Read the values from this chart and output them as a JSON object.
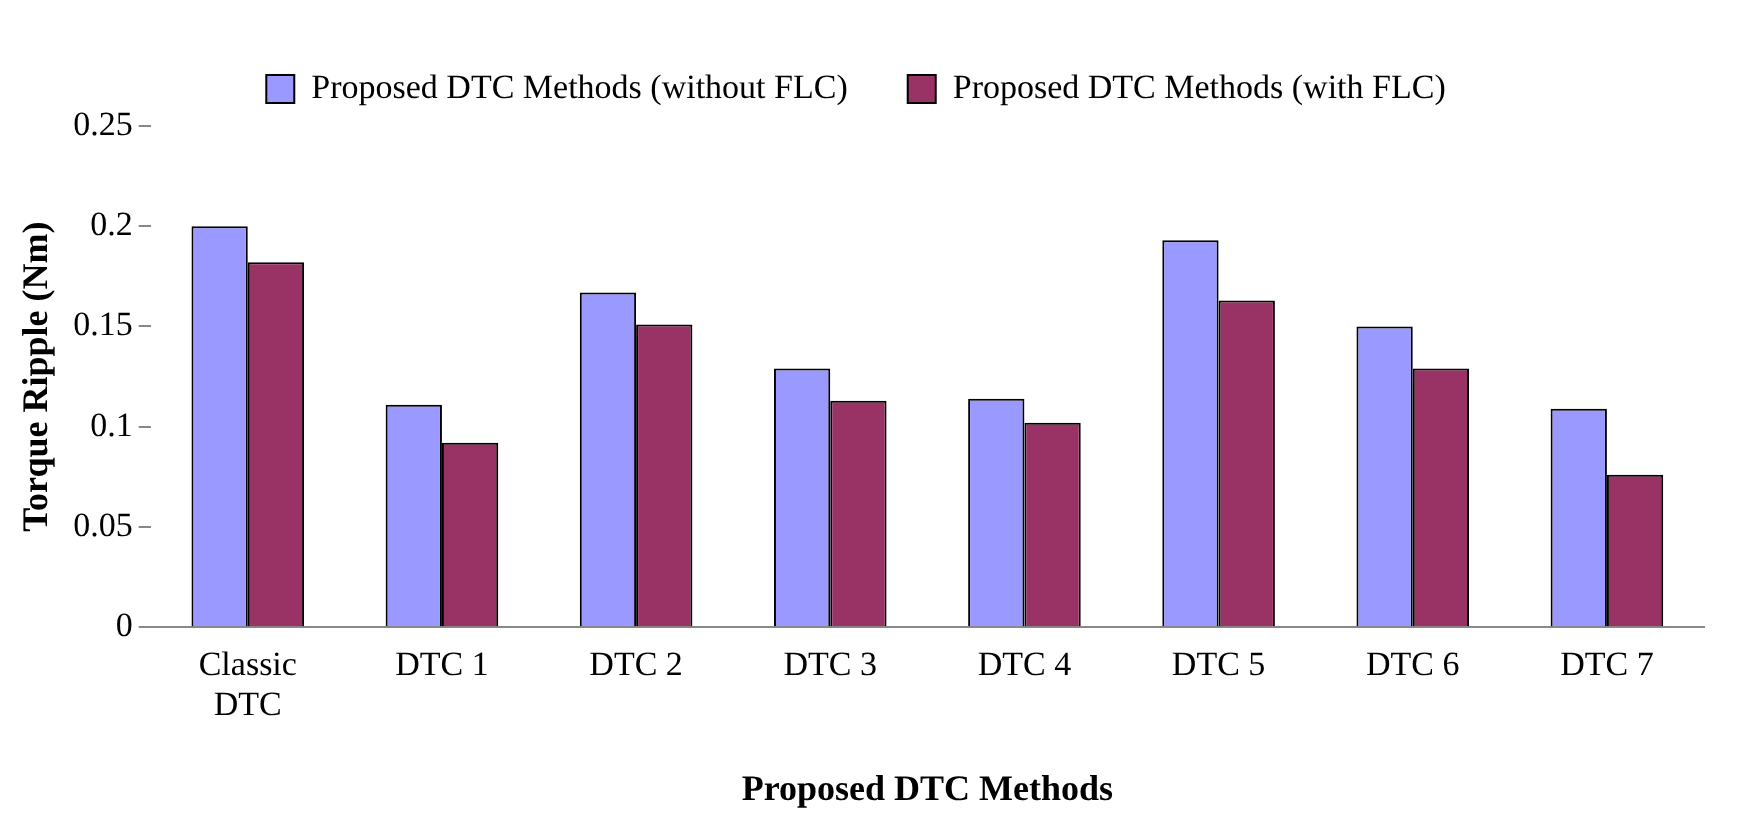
{
  "chart_data": {
    "type": "bar",
    "xlabel": "Proposed DTC Methods",
    "ylabel": "Torque Ripple (Nm)",
    "categories": [
      "Classic DTC",
      "DTC 1",
      "DTC 2",
      "DTC 3",
      "DTC 4",
      "DTC 5",
      "DTC 6",
      "DTC 7"
    ],
    "series": [
      {
        "name": "Proposed DTC Methods (without FLC)",
        "color": "#9999ff",
        "values": [
          0.2,
          0.111,
          0.167,
          0.129,
          0.114,
          0.193,
          0.15,
          0.109
        ]
      },
      {
        "name": "Proposed DTC Methods (with FLC)",
        "color": "#993366",
        "values": [
          0.182,
          0.092,
          0.151,
          0.113,
          0.102,
          0.163,
          0.129,
          0.076
        ]
      }
    ],
    "ylim": [
      0,
      0.25
    ],
    "yticks": [
      0,
      0.05,
      0.1,
      0.15,
      0.2,
      0.25
    ],
    "grid": false,
    "legend": "top"
  }
}
